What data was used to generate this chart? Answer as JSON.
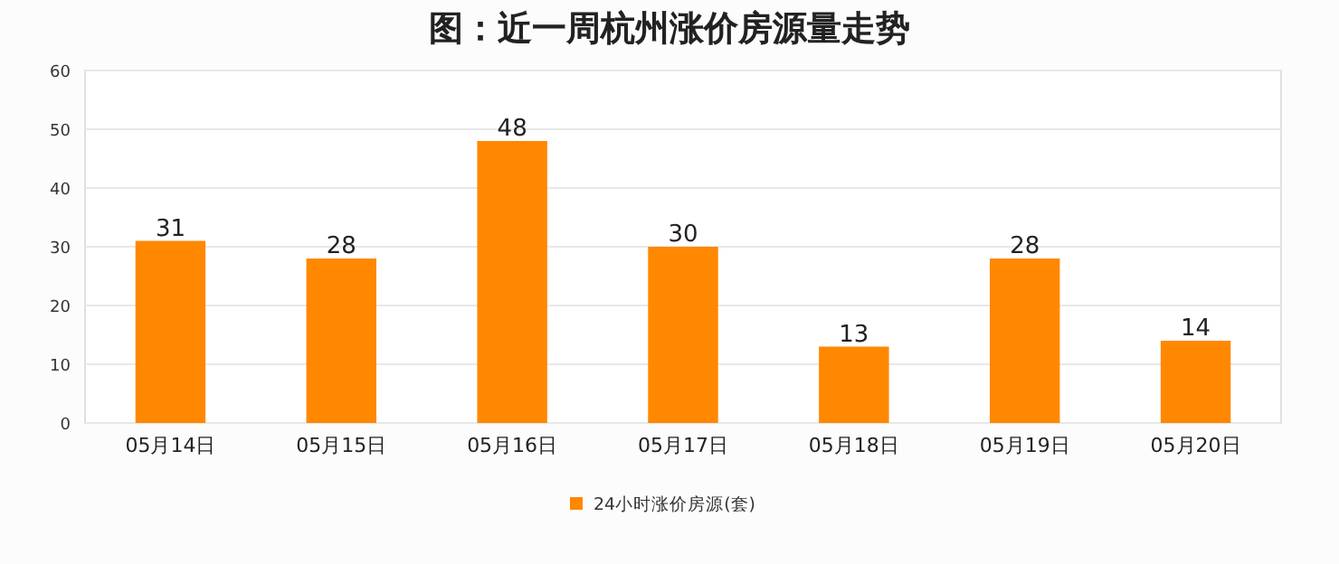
{
  "chart_data": {
    "type": "bar",
    "title": "图：近一周杭州涨价房源量走势",
    "categories": [
      "05月14日",
      "05月15日",
      "05月16日",
      "05月17日",
      "05月18日",
      "05月19日",
      "05月20日"
    ],
    "series": [
      {
        "name": "24小时涨价房源(套)",
        "color": "#ff8800",
        "values": [
          31,
          28,
          48,
          30,
          13,
          28,
          14
        ]
      }
    ],
    "ylim": [
      0,
      60
    ],
    "yticks": [
      0,
      10,
      20,
      30,
      40,
      50,
      60
    ],
    "grid": "y",
    "legend": "bottom",
    "data_labels": true
  }
}
